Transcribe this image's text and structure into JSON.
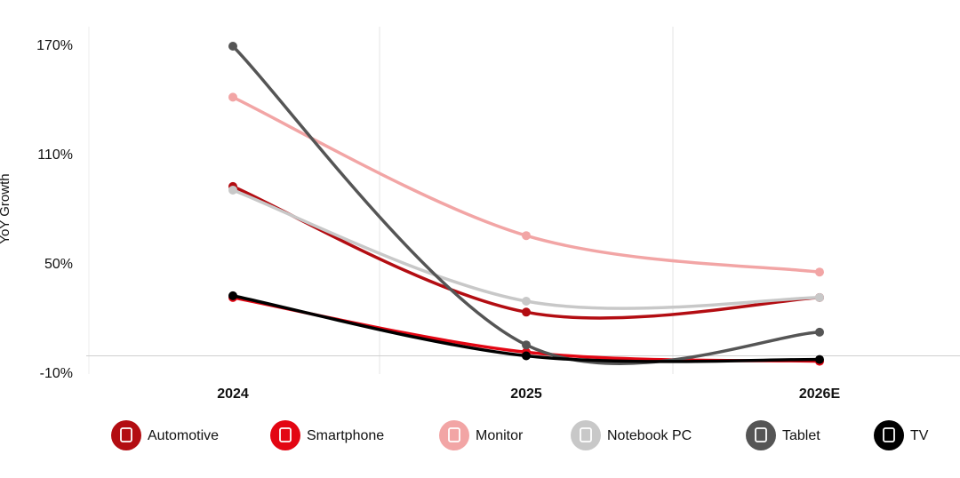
{
  "chart_data": {
    "type": "line",
    "y_label": "YoY Growth",
    "categories": [
      "2024",
      "2025",
      "2026E"
    ],
    "ylim": [
      -10,
      170
    ],
    "yticks": [
      {
        "value": -10,
        "label": "-10%"
      },
      {
        "value": 50,
        "label": "50%"
      },
      {
        "value": 110,
        "label": "110%"
      },
      {
        "value": 170,
        "label": "170%"
      }
    ],
    "grid": "x",
    "smooth": true,
    "series": [
      {
        "name": "Automotive",
        "color": "#b30d12",
        "values": [
          93,
          24,
          32
        ]
      },
      {
        "name": "Smartphone",
        "color": "#e30613",
        "values": [
          32,
          2,
          -3
        ]
      },
      {
        "name": "Monitor",
        "color": "#f2a5a5",
        "values": [
          142,
          66,
          46
        ]
      },
      {
        "name": "Notebook PC",
        "color": "#c8c8c8",
        "values": [
          91,
          30,
          32
        ]
      },
      {
        "name": "Tablet",
        "color": "#555555",
        "values": [
          170,
          6,
          13
        ]
      },
      {
        "name": "TV",
        "color": "#000000",
        "values": [
          33,
          0,
          -2
        ]
      }
    ]
  }
}
